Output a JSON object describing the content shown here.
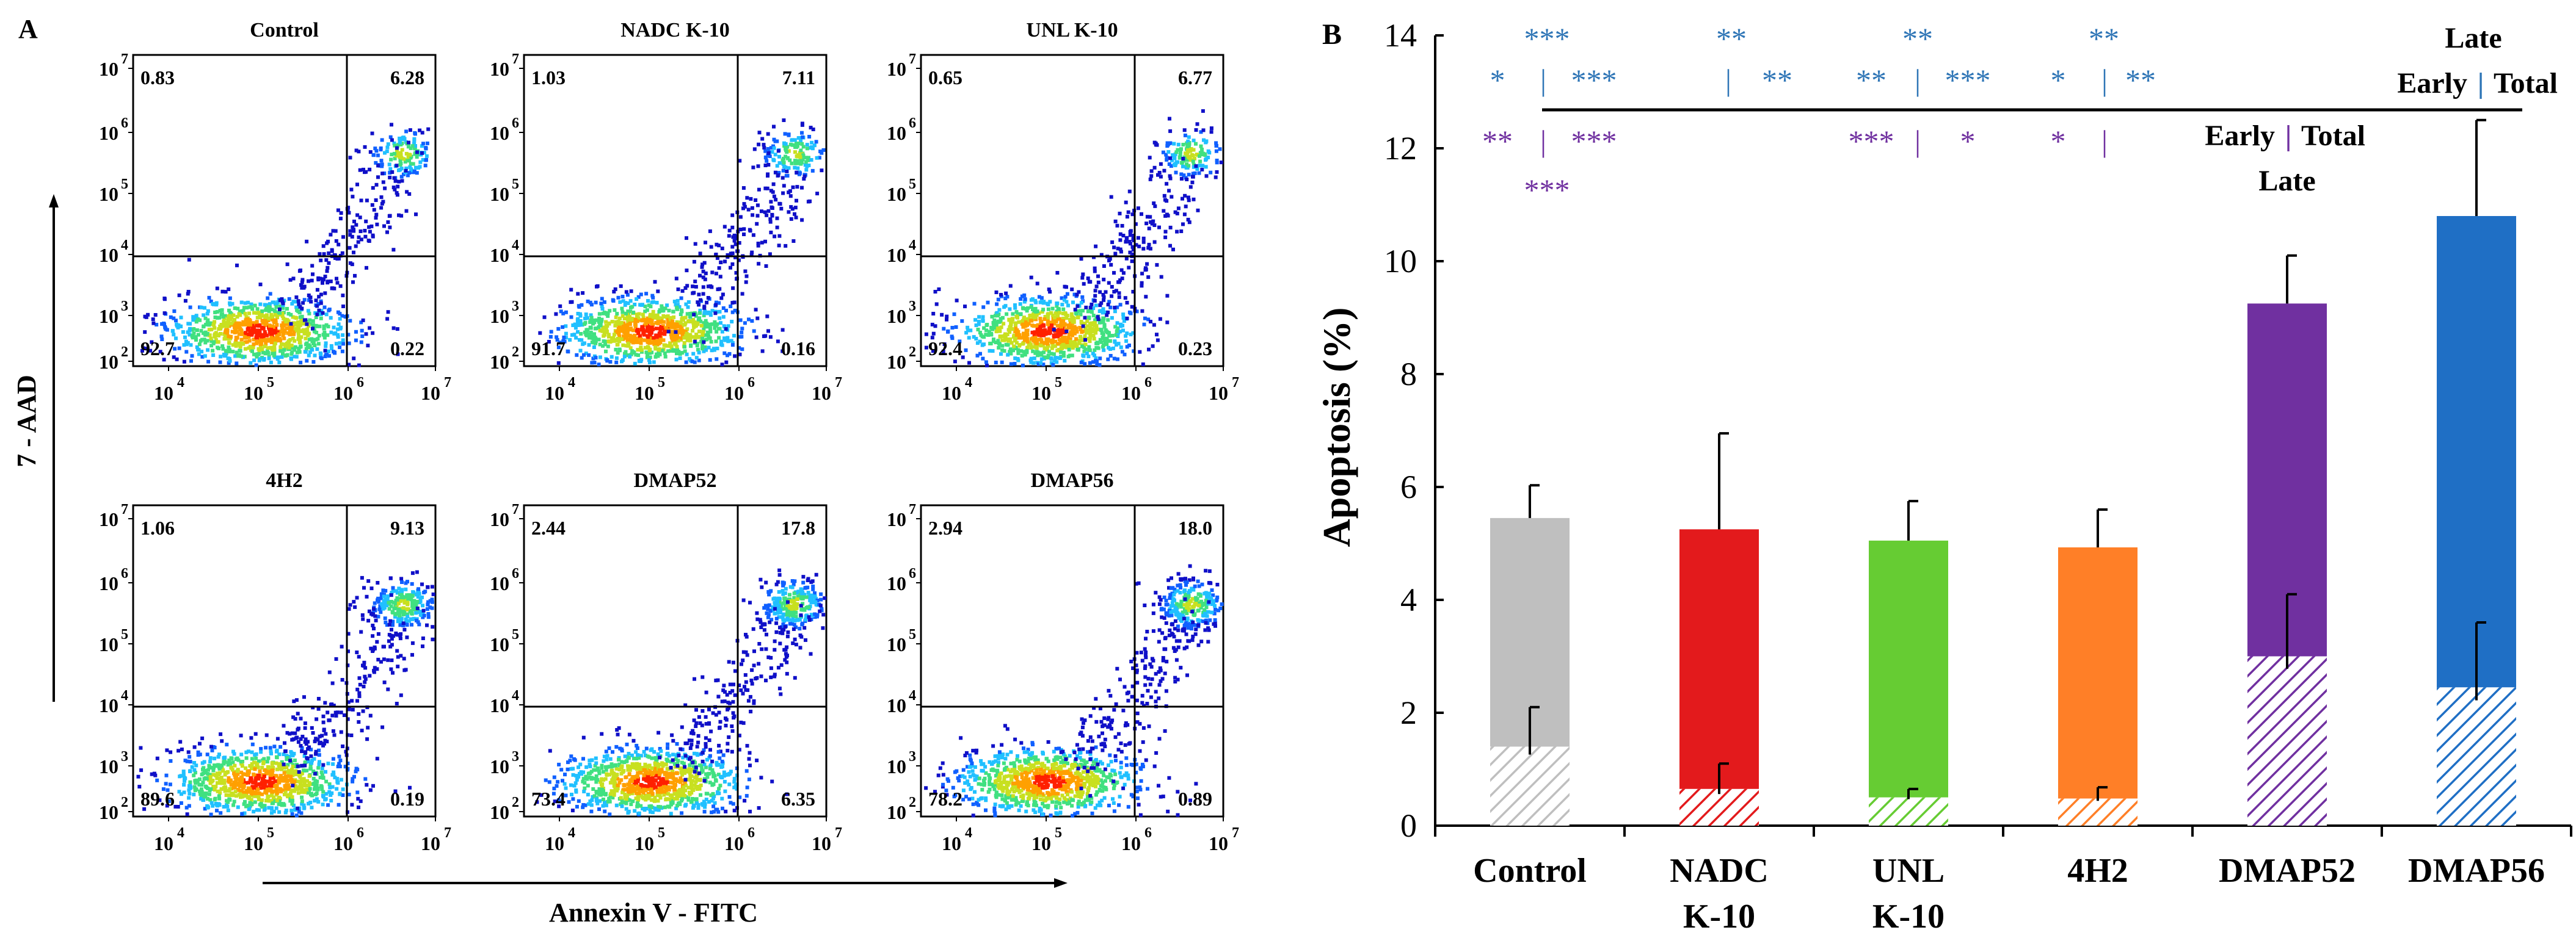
{
  "panelA": {
    "label": "A",
    "y_axis_title": "7 - AAD",
    "x_axis_title": "Annexin V - FITC",
    "x_ticks": [
      {
        "base": "10",
        "exp": "4"
      },
      {
        "base": "10",
        "exp": "5"
      },
      {
        "base": "10",
        "exp": "6"
      },
      {
        "base": "10",
        "exp": "7"
      }
    ],
    "y_ticks": [
      {
        "base": "10",
        "exp": "2"
      },
      {
        "base": "10",
        "exp": "3"
      },
      {
        "base": "10",
        "exp": "4"
      },
      {
        "base": "10",
        "exp": "5"
      },
      {
        "base": "10",
        "exp": "6"
      },
      {
        "base": "10",
        "exp": "7"
      }
    ],
    "plots": [
      {
        "title": "Control",
        "q_ul": "0.83",
        "q_ur": "6.28",
        "q_ll": "92.7",
        "q_lr": "0.22"
      },
      {
        "title": "NADC K-10",
        "q_ul": "1.03",
        "q_ur": "7.11",
        "q_ll": "91.7",
        "q_lr": "0.16"
      },
      {
        "title": "UNL K-10",
        "q_ul": "0.65",
        "q_ur": "6.77",
        "q_ll": "92.4",
        "q_lr": "0.23"
      },
      {
        "title": "4H2",
        "q_ul": "1.06",
        "q_ur": "9.13",
        "q_ll": "89.6",
        "q_lr": "0.19"
      },
      {
        "title": "DMAP52",
        "q_ul": "2.44",
        "q_ur": "17.8",
        "q_ll": "73.4",
        "q_lr": "6.35"
      },
      {
        "title": "DMAP56",
        "q_ul": "2.94",
        "q_ur": "18.0",
        "q_ll": "78.2",
        "q_lr": "0.89"
      }
    ]
  },
  "panelB": {
    "label": "B",
    "legend": {
      "early": "Early",
      "late": "Late",
      "total": "Total",
      "divider": "|"
    },
    "significance_rows": [
      {
        "color": "#2e75b6",
        "marks": [
          "***",
          "**",
          "**",
          "**"
        ]
      },
      {
        "color": "#2e75b6",
        "marks": [
          "*",
          "|",
          "***",
          "|",
          "**",
          "**",
          "|",
          "***",
          "*",
          "|",
          "**"
        ]
      },
      {
        "color": "#7030a0",
        "marks": [
          "**",
          "|",
          "***",
          "***",
          "|",
          "*",
          "*",
          "|"
        ]
      },
      {
        "color": "#7030a0",
        "marks": [
          "***"
        ]
      }
    ]
  },
  "chart_data": {
    "type": "bar",
    "title": "",
    "xlabel": "",
    "ylabel": "Apoptosis (%)",
    "ylim": [
      0,
      14
    ],
    "yticks": [
      0,
      2,
      4,
      6,
      8,
      10,
      12,
      14
    ],
    "stacked": true,
    "categories": [
      {
        "line1": "Control",
        "line2": ""
      },
      {
        "line1": "NADC",
        "line2": "K-10"
      },
      {
        "line1": "UNL",
        "line2": "K-10"
      },
      {
        "line1": "4H2",
        "line2": ""
      },
      {
        "line1": "DMAP52",
        "line2": ""
      },
      {
        "line1": "DMAP56",
        "line2": ""
      }
    ],
    "colors": [
      "#bfbfbf",
      "#e31a1c",
      "#66cc33",
      "#ff7f27",
      "#7030a0",
      "#1f6fc5"
    ],
    "series": [
      {
        "name": "Early",
        "pattern": "hatched",
        "values": [
          1.4,
          0.65,
          0.5,
          0.48,
          3.0,
          2.45
        ],
        "errors": [
          0.7,
          0.45,
          0.15,
          0.2,
          1.1,
          1.15
        ]
      },
      {
        "name": "Late",
        "pattern": "solid",
        "values": [
          4.05,
          4.6,
          4.55,
          4.45,
          6.25,
          8.35
        ]
      }
    ],
    "totals": [
      5.45,
      5.25,
      5.05,
      4.93,
      9.25,
      10.8
    ],
    "total_errors": [
      0.58,
      1.7,
      0.7,
      0.67,
      0.85,
      1.7
    ]
  }
}
